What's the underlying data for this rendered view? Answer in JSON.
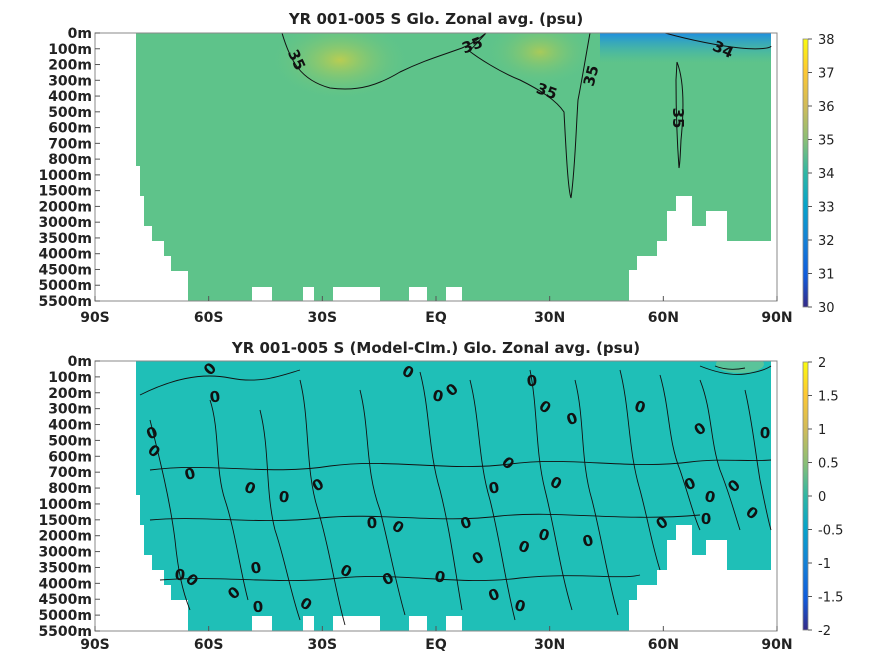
{
  "chart_data": [
    {
      "type": "heatmap",
      "title": "YR 001-005 S Glo. Zonal avg. (psu)",
      "x_ticks": [
        "90S",
        "60S",
        "30S",
        "EQ",
        "30N",
        "60N",
        "90N"
      ],
      "xlim": [
        -90,
        90
      ],
      "y_ticks": [
        "0m",
        "100m",
        "200m",
        "300m",
        "400m",
        "500m",
        "600m",
        "700m",
        "800m",
        "1000m",
        "1500m",
        "2000m",
        "3000m",
        "3500m",
        "4000m",
        "4500m",
        "5000m",
        "5500m"
      ],
      "colorbar": {
        "min": 30,
        "max": 38,
        "ticks": [
          "38",
          "37",
          "36",
          "35",
          "34",
          "33",
          "32",
          "31",
          "30"
        ],
        "colormap": "parula"
      },
      "contour_labels": [
        "35",
        "35",
        "35",
        "35",
        "35",
        "34"
      ],
      "background_value": 34.7
    },
    {
      "type": "heatmap",
      "title": "YR 001-005 S (Model-Clm.) Glo. Zonal avg. (psu)",
      "x_ticks": [
        "90S",
        "60S",
        "30S",
        "EQ",
        "30N",
        "60N",
        "90N"
      ],
      "xlim": [
        -90,
        90
      ],
      "y_ticks": [
        "0m",
        "100m",
        "200m",
        "300m",
        "400m",
        "500m",
        "600m",
        "700m",
        "800m",
        "1000m",
        "1500m",
        "2000m",
        "3000m",
        "3500m",
        "4000m",
        "4500m",
        "5000m",
        "5500m"
      ],
      "colorbar": {
        "min": -2,
        "max": 2,
        "ticks": [
          "2",
          "1.5",
          "1",
          "0.5",
          "0",
          "-0.5",
          "-1",
          "-1.5",
          "-2"
        ],
        "colormap": "parula"
      },
      "contour_labels": [
        "0",
        "0",
        "0",
        "0",
        "0",
        "0",
        "0",
        "0",
        "0",
        "0",
        "0",
        "0",
        "0",
        "0",
        "0",
        "0",
        "0",
        "0",
        "0",
        "0",
        "0",
        "0",
        "0",
        "0",
        "0",
        "0",
        "0",
        "0",
        "0",
        "0",
        "0",
        "0",
        "0",
        "0",
        "0",
        "0",
        "0",
        "0",
        "0",
        "0",
        "0",
        "0",
        "0",
        "0"
      ],
      "background_value": 0
    }
  ]
}
